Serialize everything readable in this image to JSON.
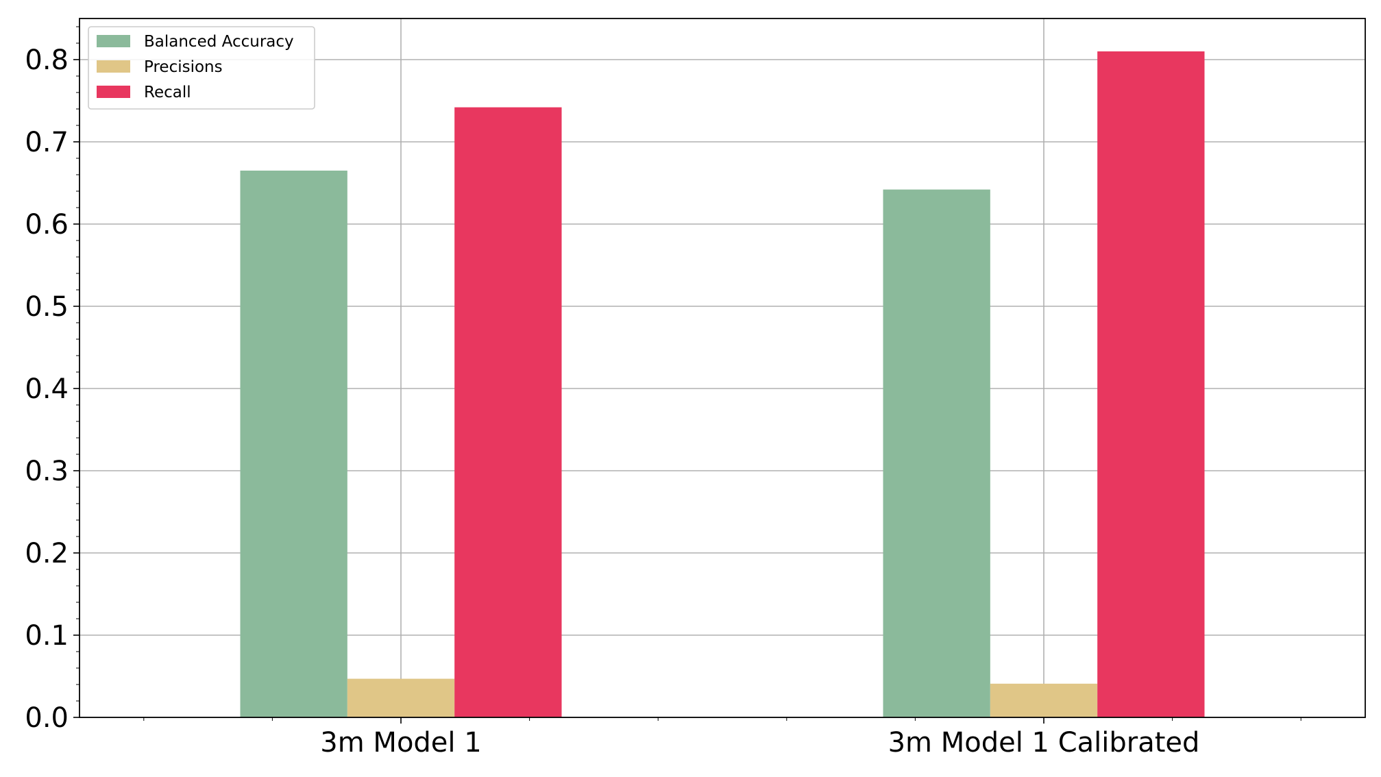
{
  "chart_data": {
    "type": "bar",
    "categories": [
      "3m Model 1",
      "3m Model 1 Calibrated"
    ],
    "series": [
      {
        "name": "Balanced Accuracy",
        "color": "#8bba9b",
        "values": [
          0.665,
          0.642
        ]
      },
      {
        "name": "Precisions",
        "color": "#e0c687",
        "values": [
          0.047,
          0.041
        ]
      },
      {
        "name": "Recall",
        "color": "#e8375f",
        "values": [
          0.742,
          0.81
        ]
      }
    ],
    "title": "",
    "xlabel": "",
    "ylabel": "",
    "ylim": [
      0,
      0.85
    ],
    "yticks": [
      "0.0",
      "0.1",
      "0.2",
      "0.3",
      "0.4",
      "0.5",
      "0.6",
      "0.7",
      "0.8"
    ],
    "grid": true,
    "legend_position": "top-left"
  }
}
